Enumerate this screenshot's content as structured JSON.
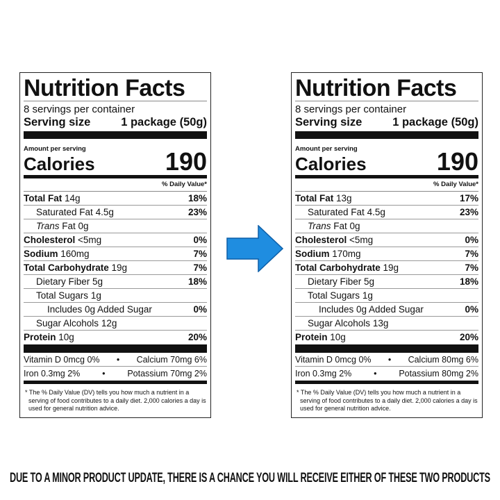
{
  "labels": [
    {
      "title": "Nutrition Facts",
      "servings": "8 servings per container",
      "serving_size_label": "Serving size",
      "serving_size_value": "1 package (50g)",
      "amount_per_serving": "Amount per serving",
      "calories_label": "Calories",
      "calories_value": "190",
      "dv_header": "% Daily Value*",
      "rows": [
        {
          "name": "Total Fat",
          "amount": "14g",
          "dv": "18%"
        },
        {
          "name": "Saturated Fat",
          "amount": "4.5g",
          "dv": "23%"
        },
        {
          "name": "Trans Fat",
          "amount": "0g",
          "dv": ""
        },
        {
          "name": "Cholesterol",
          "amount": "<5mg",
          "dv": "0%"
        },
        {
          "name": "Sodium",
          "amount": "160mg",
          "dv": "7%"
        },
        {
          "name": "Total Carbohydrate",
          "amount": "19g",
          "dv": "7%"
        },
        {
          "name": "Dietary Fiber",
          "amount": "5g",
          "dv": "18%"
        },
        {
          "name": "Total Sugars",
          "amount": "1g",
          "dv": ""
        },
        {
          "name": "Includes 0g Added Sugar",
          "amount": "",
          "dv": "0%"
        },
        {
          "name": "Sugar Alcohols",
          "amount": "12g",
          "dv": ""
        },
        {
          "name": "Protein",
          "amount": "10g",
          "dv": "20%"
        }
      ],
      "vitamins": [
        {
          "left": "Vitamin D 0mcg 0%",
          "right": "Calcium 70mg 6%"
        },
        {
          "left": "Iron 0.3mg 2%",
          "right": "Potassium 70mg 2%"
        }
      ],
      "footnote": "* The % Daily Value (DV) tells you how much a nutrient in a serving of food contributes to a daily diet. 2,000 calories a day is used for general nutrition advice."
    },
    {
      "title": "Nutrition Facts",
      "servings": "8 servings per container",
      "serving_size_label": "Serving size",
      "serving_size_value": "1 package (50g)",
      "amount_per_serving": "Amount per serving",
      "calories_label": "Calories",
      "calories_value": "190",
      "dv_header": "% Daily Value*",
      "rows": [
        {
          "name": "Total Fat",
          "amount": "13g",
          "dv": "17%"
        },
        {
          "name": "Saturated Fat",
          "amount": "4.5g",
          "dv": "23%"
        },
        {
          "name": "Trans Fat",
          "amount": "0g",
          "dv": ""
        },
        {
          "name": "Cholesterol",
          "amount": "<5mg",
          "dv": "0%"
        },
        {
          "name": "Sodium",
          "amount": "170mg",
          "dv": "7%"
        },
        {
          "name": "Total Carbohydrate",
          "amount": "19g",
          "dv": "7%"
        },
        {
          "name": "Dietary Fiber",
          "amount": "5g",
          "dv": "18%"
        },
        {
          "name": "Total Sugars",
          "amount": "1g",
          "dv": ""
        },
        {
          "name": "Includes 0g Added Sugar",
          "amount": "",
          "dv": "0%"
        },
        {
          "name": "Sugar Alcohols",
          "amount": "13g",
          "dv": ""
        },
        {
          "name": "Protein",
          "amount": "10g",
          "dv": "20%"
        }
      ],
      "vitamins": [
        {
          "left": "Vitamin D 0mcg 0%",
          "right": "Calcium 80mg 6%"
        },
        {
          "left": "Iron 0.3mg 2%",
          "right": "Potassium 80mg 2%"
        }
      ],
      "footnote": "* The % Daily Value (DV) tells you how much a nutrient in a serving of food contributes to a daily diet. 2,000 calories a day is used for general nutrition advice."
    }
  ],
  "arrow": {
    "icon": "right-arrow-icon",
    "color": "#1f8de0"
  },
  "caption": "DUE TO A MINOR PRODUCT UPDATE, THERE IS A CHANCE YOU WILL RECEIVE EITHER OF THESE TWO PRODUCTS"
}
